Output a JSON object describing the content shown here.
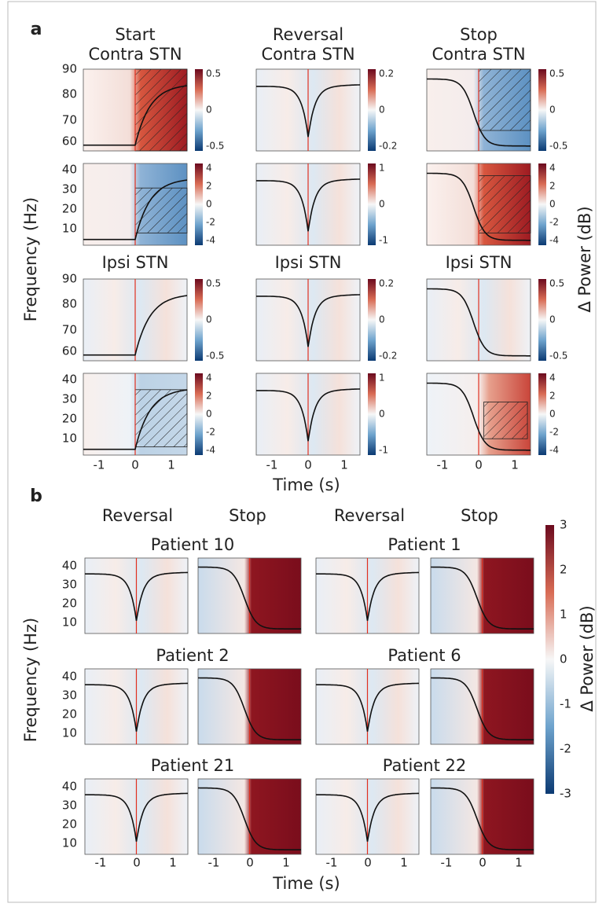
{
  "panel_a": {
    "label": "a",
    "columns": [
      {
        "title": [
          "Start",
          "Contra STN"
        ],
        "ipsi_title": "Ipsi STN"
      },
      {
        "title": [
          "Reversal",
          "Contra STN"
        ],
        "ipsi_title": "Ipsi STN"
      },
      {
        "title": [
          "Stop",
          "Contra STN"
        ],
        "ipsi_title": "Ipsi STN"
      }
    ],
    "y_label": "Frequency (Hz)",
    "x_label": "Time (s)",
    "colorbar_label": "Δ Power (dB)",
    "x_ticks": [
      "-1",
      "0",
      "1"
    ],
    "gamma_y_ticks": [
      "90",
      "80",
      "70",
      "60"
    ],
    "beta_y_ticks": [
      "40",
      "30",
      "20",
      "10"
    ],
    "gamma_colorbar_ticks": [
      [
        "0.5",
        "0",
        "-0.5"
      ],
      [
        "0.2",
        "0",
        "-0.2"
      ],
      [
        "0.5",
        "0",
        "-0.5"
      ]
    ],
    "beta_colorbar_ticks": [
      [
        "4",
        "2",
        "0",
        "-2",
        "-4"
      ],
      [
        "1",
        "0",
        "-1"
      ],
      [
        "4",
        "2",
        "0",
        "-2",
        "-4"
      ]
    ]
  },
  "panel_b": {
    "label": "b",
    "conditions": [
      "Reversal",
      "Stop",
      "Reversal",
      "Stop"
    ],
    "patients": [
      "Patient 10",
      "Patient 1",
      "Patient 2",
      "Patient 6",
      "Patient 21",
      "Patient 22"
    ],
    "y_label": "Frequency (Hz)",
    "x_label": "Time (s)",
    "colorbar_label": "Δ Power (dB)",
    "x_ticks": [
      "-1",
      "0",
      "1"
    ],
    "y_ticks": [
      "40",
      "30",
      "20",
      "10"
    ],
    "colorbar_ticks": [
      "3",
      "2",
      "1",
      "0",
      "-1",
      "-2",
      "-3"
    ]
  }
}
